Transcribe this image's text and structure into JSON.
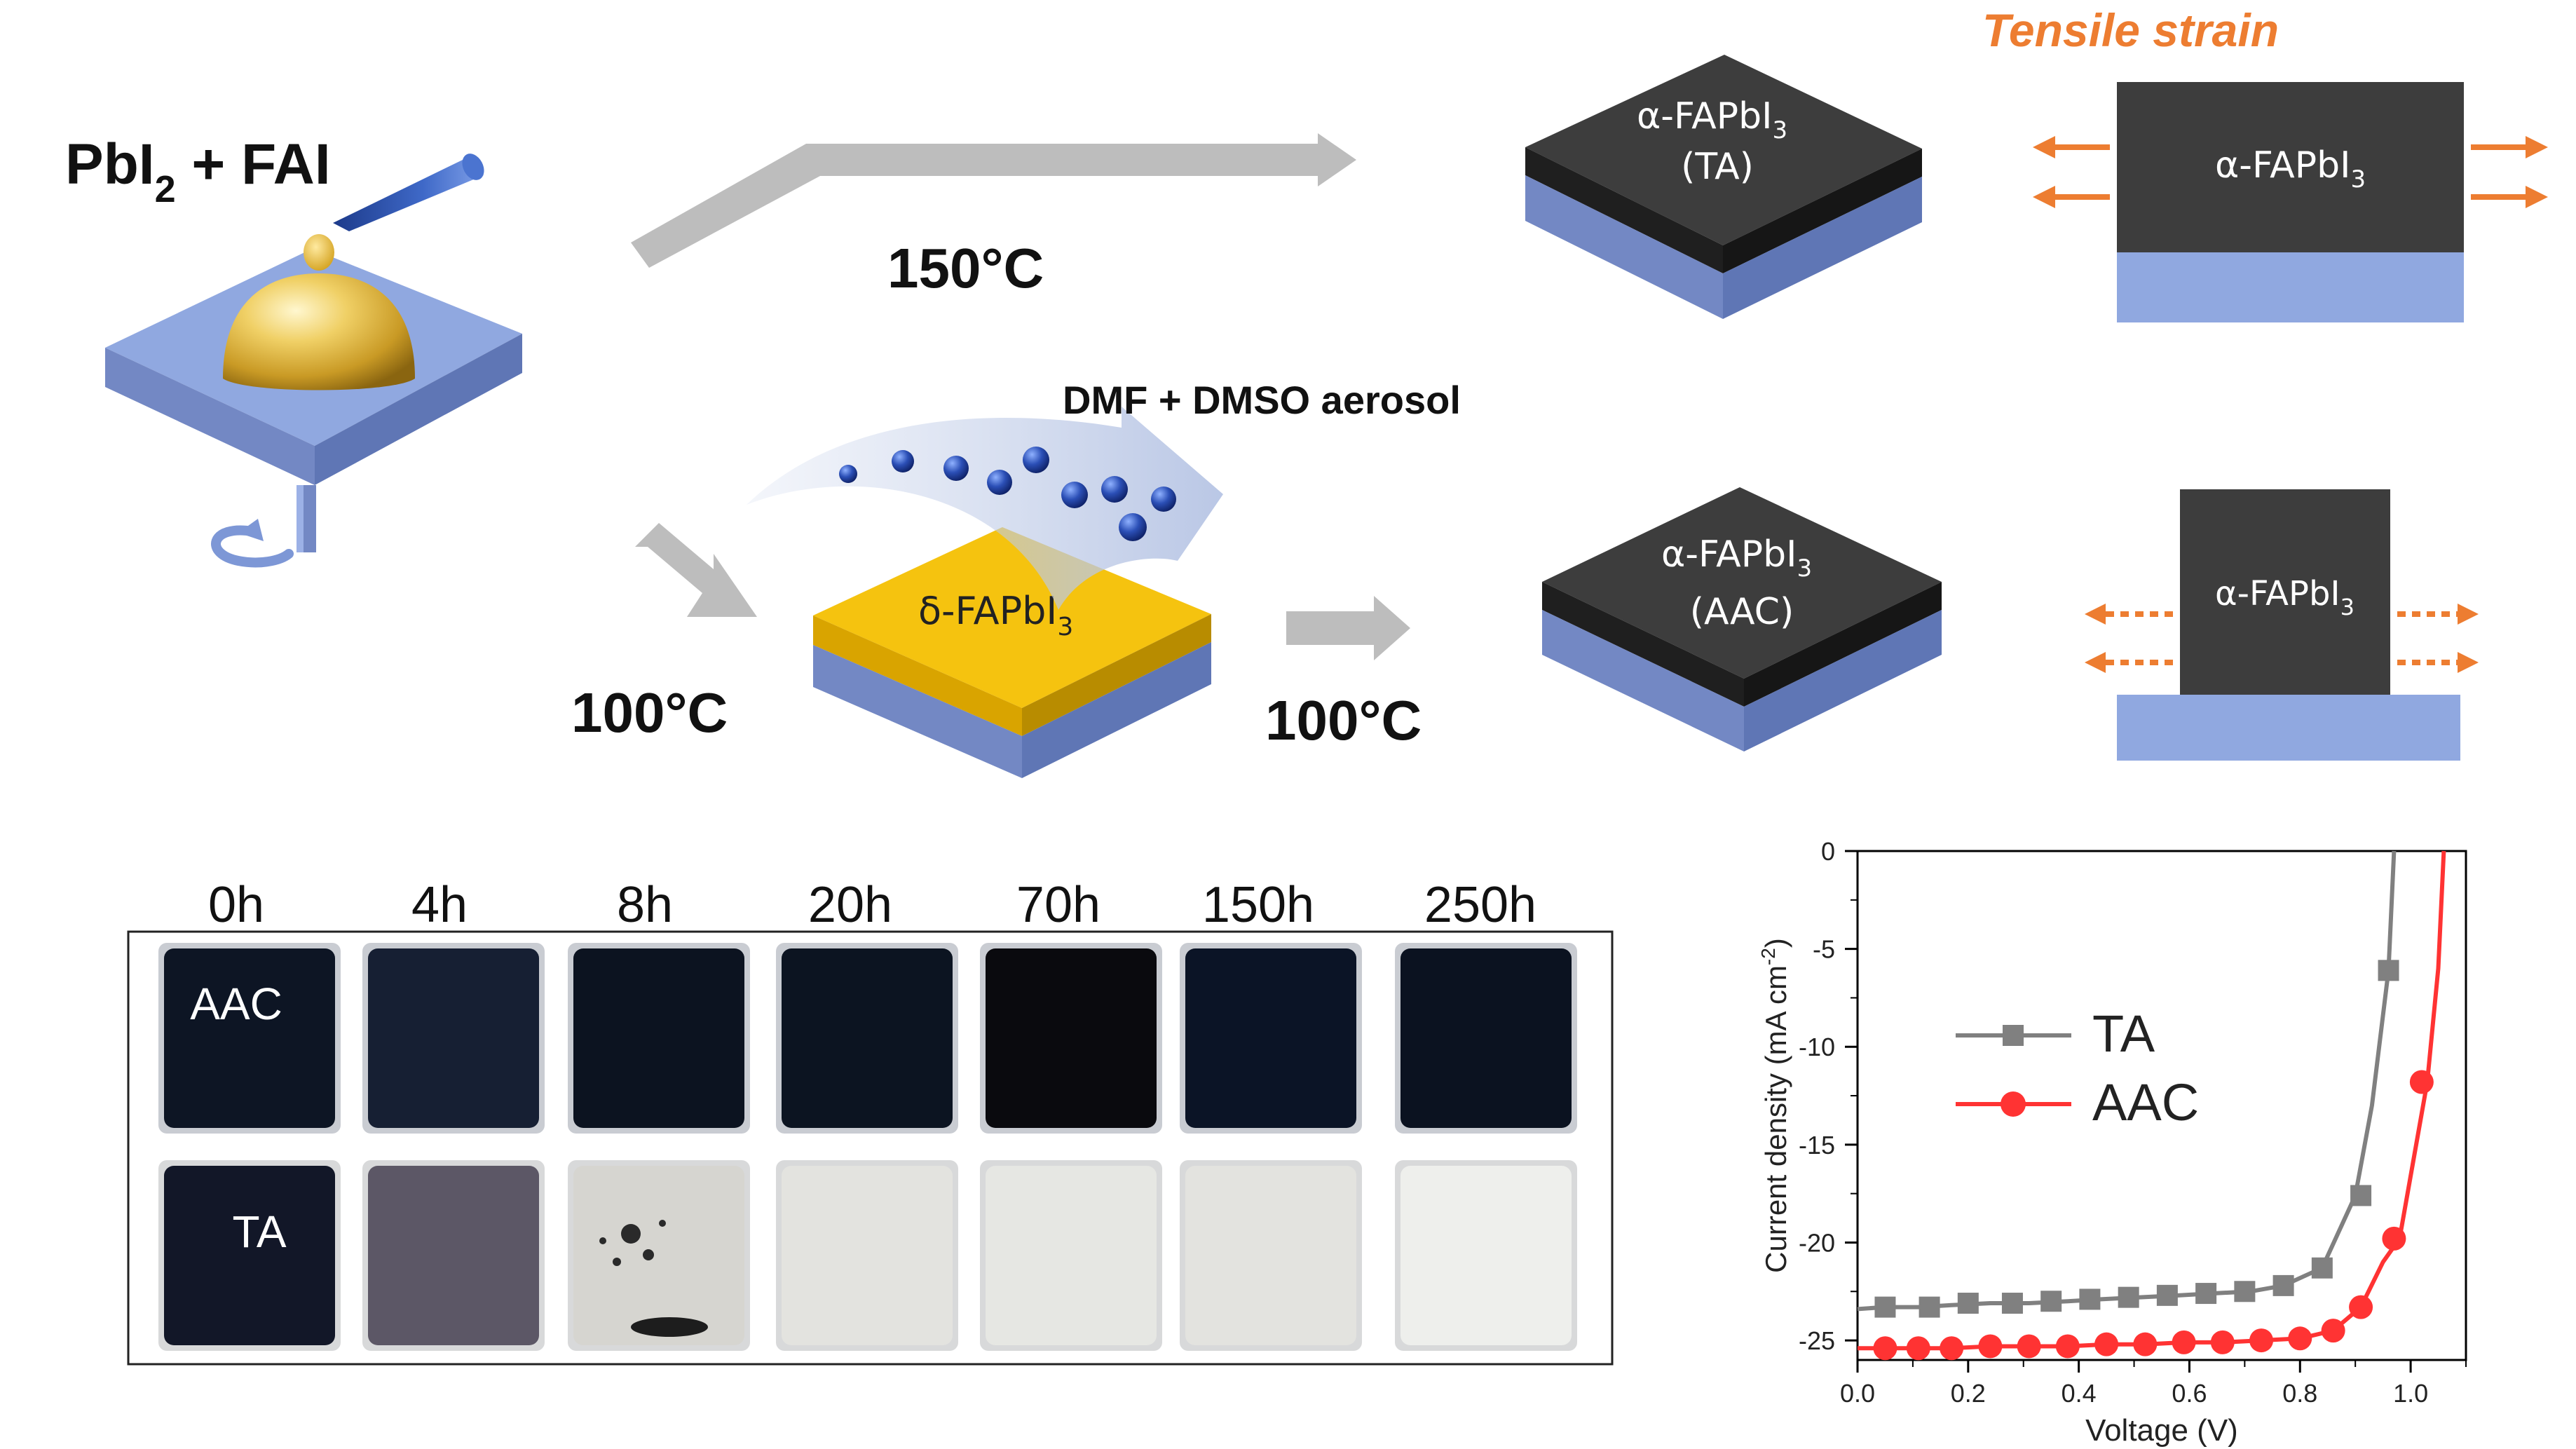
{
  "colors": {
    "substrate": "#90a8e0",
    "substrate_side": "#7388c4",
    "film_dark": "#3d3d3d",
    "film_side": "#1f1f1f",
    "delta_yellow": "#f5c30f",
    "arrow_gray": "#bdbdbd",
    "strain_orange": "#ed7d31",
    "droplet_blue": "#1f3f9a",
    "ta_gray": "#808080",
    "aac_red": "#ff3333"
  },
  "scheme": {
    "precursor": {
      "main": "PbI",
      "sub": "2",
      "tail": " + FAI"
    },
    "route_top_temp": "150°C",
    "route_bottom_temp1": "100°C",
    "route_bottom_temp2": "100°C",
    "aerosol_label": "DMF + DMSO aerosol",
    "delta_film": {
      "pre": "δ-FAPbI",
      "sub": "3"
    },
    "ta_film": {
      "pre": "α-FAPbI",
      "sub": "3",
      "sample": "(TA)"
    },
    "aac_film": {
      "pre": "α-FAPbI",
      "sub": "3",
      "sample": "(AAC)"
    },
    "strain_title": "Tensile strain",
    "strain_top": {
      "pre": "α-FAPbI",
      "sub": "3"
    },
    "strain_bottom": {
      "pre": "α-FAPbI",
      "sub": "3"
    }
  },
  "photos": {
    "times": [
      "0h",
      "4h",
      "8h",
      "20h",
      "70h",
      "150h",
      "250h"
    ],
    "row_labels": [
      "AAC",
      "TA"
    ],
    "aac_tones": [
      "#0d1524",
      "#161f33",
      "#0c1320",
      "#0c1421",
      "#0a0a0e",
      "#0b1426",
      "#0b1220"
    ],
    "ta_tones": [
      "#121728",
      "#5c5766",
      "#d6d5d0",
      "#e3e3df",
      "#e6e7e3",
      "#e3e3df",
      "#eeefec"
    ]
  },
  "chart_data": {
    "type": "line",
    "xlabel": "Voltage (V)",
    "ylabel": {
      "pre": "Current density (mA cm",
      "sup": "-2",
      "post": ")"
    },
    "xlim": [
      0.0,
      1.1
    ],
    "ylim": [
      -26,
      0
    ],
    "xticks": [
      "0.0",
      "0.2",
      "0.4",
      "0.6",
      "0.8",
      "1.0"
    ],
    "yticks": [
      "0",
      "-5",
      "-10",
      "-15",
      "-20",
      "-25"
    ],
    "legend_position": "center-left",
    "series": [
      {
        "name": "TA",
        "marker": "square",
        "color": "#808080",
        "x": [
          0.0,
          0.05,
          0.11,
          0.17,
          0.24,
          0.31,
          0.38,
          0.44,
          0.51,
          0.58,
          0.64,
          0.71,
          0.77,
          0.84,
          0.9,
          0.93,
          0.96,
          0.97
        ],
        "y": [
          -23.4,
          -23.3,
          -23.3,
          -23.2,
          -23.1,
          -23.1,
          -23.0,
          -22.9,
          -22.8,
          -22.7,
          -22.6,
          -22.5,
          -22.2,
          -21.3,
          -17.6,
          -13.0,
          -6.1,
          0.0
        ],
        "marker_x": [
          0.05,
          0.13,
          0.2,
          0.28,
          0.35,
          0.42,
          0.49,
          0.56,
          0.63,
          0.7,
          0.77,
          0.84,
          0.91,
          0.96
        ],
        "marker_y": [
          -23.3,
          -23.3,
          -23.1,
          -23.1,
          -23.0,
          -22.9,
          -22.8,
          -22.7,
          -22.6,
          -22.5,
          -22.2,
          -21.3,
          -17.6,
          -6.1
        ]
      },
      {
        "name": "AAC",
        "marker": "circle",
        "color": "#ff3333",
        "x": [
          0.0,
          0.05,
          0.11,
          0.17,
          0.24,
          0.31,
          0.38,
          0.45,
          0.52,
          0.59,
          0.66,
          0.73,
          0.8,
          0.86,
          0.91,
          0.95,
          0.98,
          1.01,
          1.03,
          1.05,
          1.06
        ],
        "y": [
          -25.4,
          -25.4,
          -25.4,
          -25.4,
          -25.3,
          -25.3,
          -25.3,
          -25.2,
          -25.2,
          -25.1,
          -25.1,
          -25.0,
          -24.9,
          -24.5,
          -23.3,
          -21.0,
          -19.8,
          -15.0,
          -11.8,
          -6.0,
          0.0
        ],
        "marker_x": [
          0.05,
          0.11,
          0.17,
          0.24,
          0.31,
          0.38,
          0.45,
          0.52,
          0.59,
          0.66,
          0.73,
          0.8,
          0.86,
          0.91,
          0.97,
          1.02
        ],
        "marker_y": [
          -25.4,
          -25.4,
          -25.4,
          -25.3,
          -25.3,
          -25.3,
          -25.2,
          -25.2,
          -25.1,
          -25.1,
          -25.0,
          -24.9,
          -24.5,
          -23.3,
          -19.8,
          -11.8
        ]
      }
    ]
  }
}
